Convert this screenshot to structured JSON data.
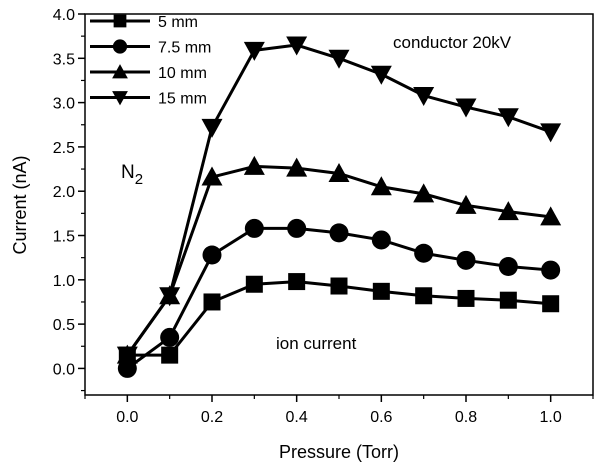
{
  "chart_data": {
    "type": "line",
    "xlabel": "Pressure (Torr)",
    "ylabel": "Current (nA)",
    "xlim": [
      -0.1,
      1.1
    ],
    "ylim": [
      -0.3,
      4.0
    ],
    "xticks": [
      "0.0",
      "0.2",
      "0.4",
      "0.6",
      "0.8",
      "1.0"
    ],
    "yticks": [
      "0.0",
      "0.5",
      "1.0",
      "1.5",
      "2.0",
      "2.5",
      "3.0",
      "3.5",
      "4.0"
    ],
    "x": [
      0.0,
      0.1,
      0.2,
      0.3,
      0.4,
      0.5,
      0.6,
      0.7,
      0.8,
      0.9,
      1.0
    ],
    "series": [
      {
        "name": "5 mm",
        "marker": "square",
        "values": [
          0.15,
          0.15,
          0.75,
          0.95,
          0.98,
          0.93,
          0.87,
          0.82,
          0.79,
          0.77,
          0.73
        ]
      },
      {
        "name": "7.5 mm",
        "marker": "circle",
        "values": [
          0.0,
          0.35,
          1.28,
          1.58,
          1.58,
          1.53,
          1.45,
          1.3,
          1.22,
          1.15,
          1.11
        ]
      },
      {
        "name": "10 mm",
        "marker": "triangle-up",
        "values": [
          0.15,
          0.82,
          2.16,
          2.28,
          2.26,
          2.2,
          2.05,
          1.97,
          1.84,
          1.77,
          1.71
        ]
      },
      {
        "name": "15 mm",
        "marker": "triangle-down",
        "values": [
          0.15,
          0.82,
          2.72,
          3.59,
          3.65,
          3.5,
          3.32,
          3.08,
          2.95,
          2.84,
          2.67
        ]
      }
    ],
    "annotations": {
      "conductor": "conductor 20kV",
      "gas": "N",
      "gas_sub": "2",
      "ion": "ion current"
    },
    "grid": false,
    "legend_position": "top-left"
  }
}
